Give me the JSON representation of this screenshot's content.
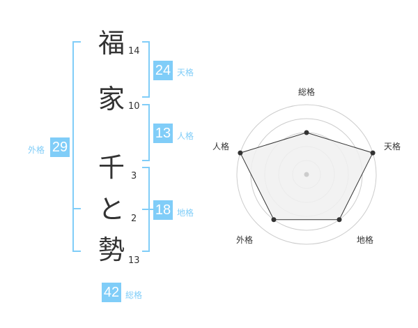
{
  "name": [
    {
      "char": "福",
      "strokes": "14"
    },
    {
      "char": "家",
      "strokes": "10"
    },
    {
      "char": "千",
      "strokes": "3"
    },
    {
      "char": "と",
      "strokes": "2"
    },
    {
      "char": "勢",
      "strokes": "13"
    }
  ],
  "fortunes": {
    "tenkaku": {
      "value": "24",
      "label": "天格"
    },
    "jinkaku": {
      "value": "13",
      "label": "人格"
    },
    "chikaku": {
      "value": "18",
      "label": "地格"
    },
    "gaikaku": {
      "value": "29",
      "label": "外格"
    },
    "soukaku": {
      "value": "42",
      "label": "総格"
    }
  },
  "colors": {
    "accent": "#80cdf8",
    "text": "#333333",
    "radar_fill": "#f0f0f0",
    "ring": "#cccccc"
  },
  "chart_data": {
    "type": "radar",
    "axes": [
      "総格",
      "天格",
      "地格",
      "外格",
      "人格"
    ],
    "values": [
      3,
      5,
      4,
      4,
      5
    ],
    "range": [
      0,
      5
    ],
    "rings": 5
  }
}
